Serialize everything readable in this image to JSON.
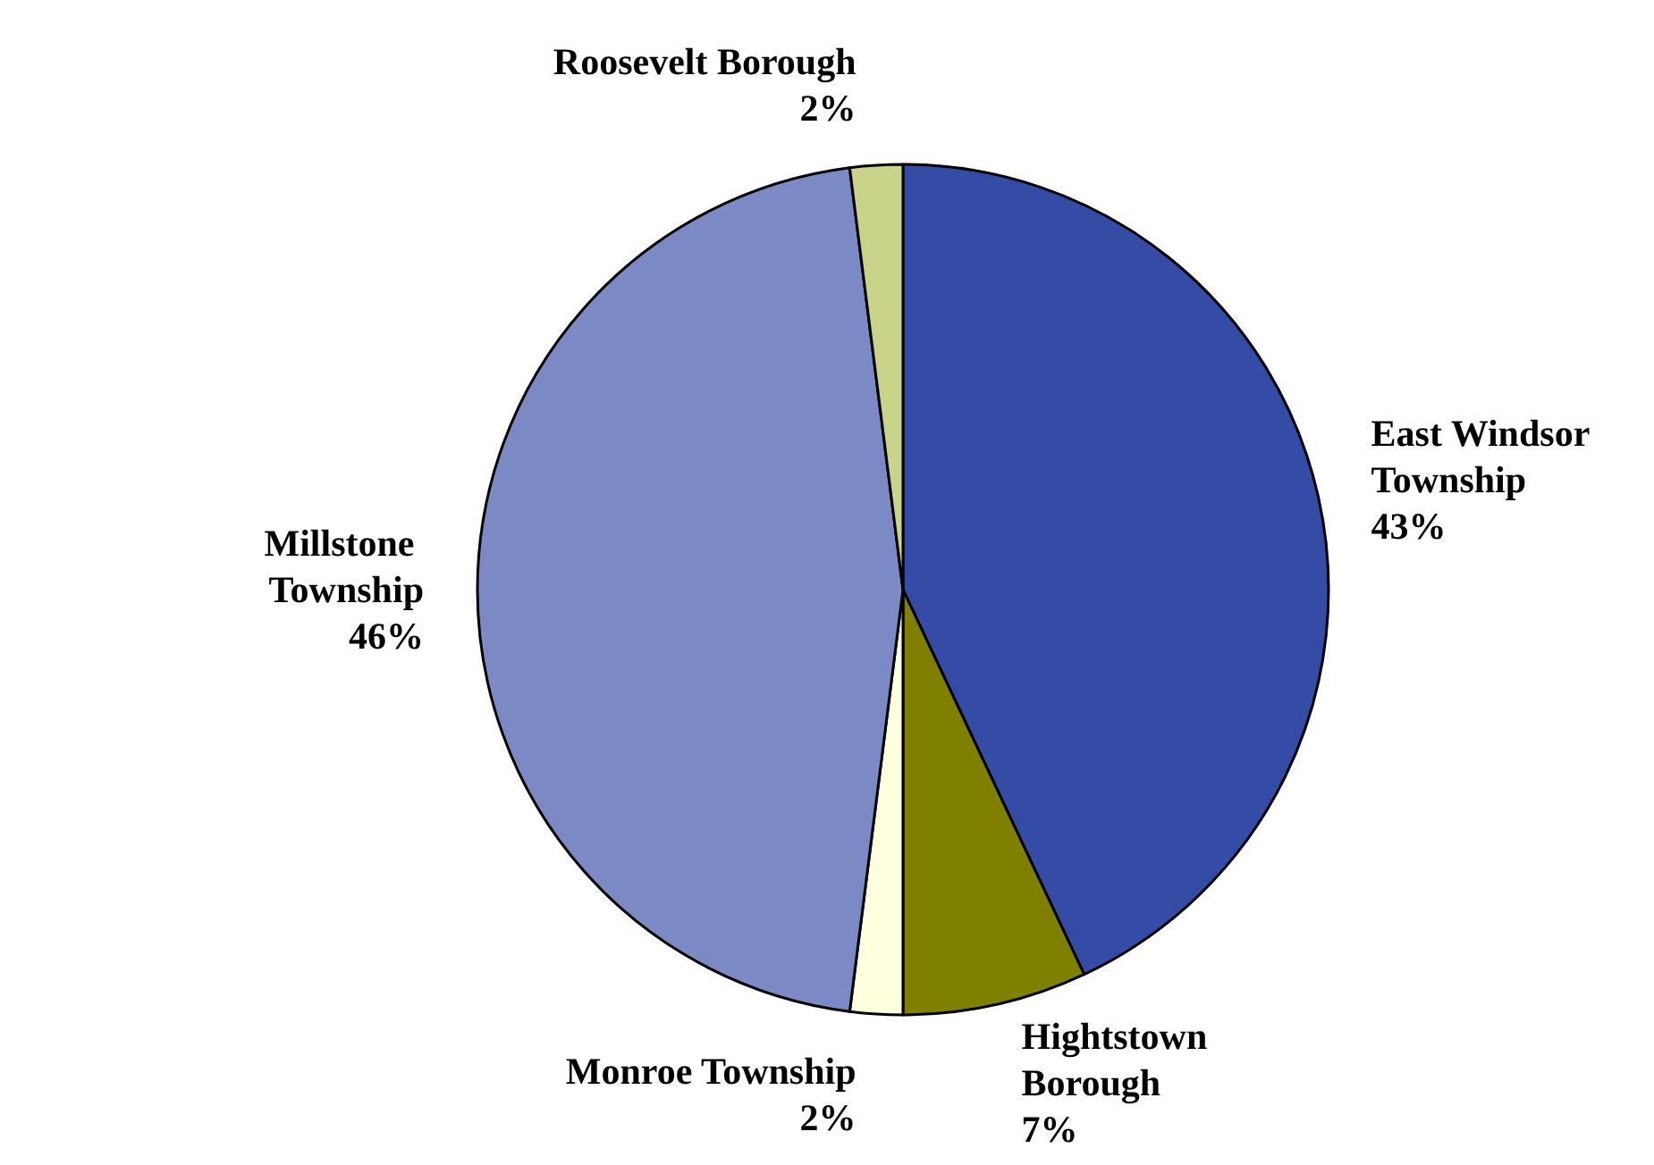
{
  "chart_data": {
    "type": "pie",
    "categories": [
      "East Windsor Township",
      "Hightstown Borough",
      "Monroe Township",
      "Millstone Township",
      "Roosevelt Borough"
    ],
    "values": [
      43,
      7,
      2,
      46,
      2
    ],
    "value_labels": [
      "43%",
      "7%",
      "2%",
      "46%",
      "2%"
    ],
    "colors": [
      "#344ca6",
      "#808000",
      "#ffffe0",
      "#7b8ac4",
      "#c9d48a"
    ],
    "legend": false
  }
}
